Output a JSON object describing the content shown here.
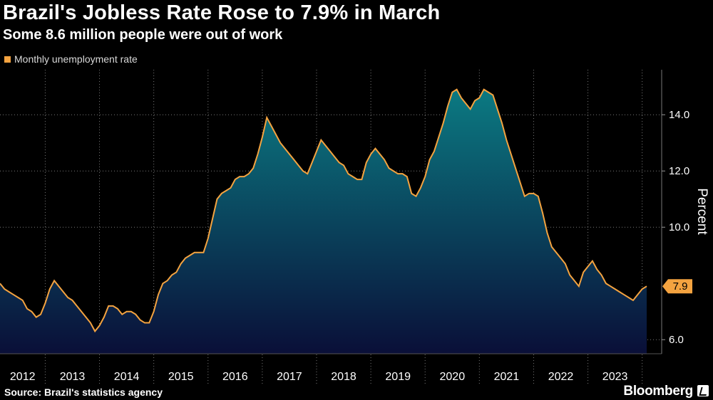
{
  "header": {
    "title": "Brazil's Jobless Rate Rose to 7.9% in March",
    "subtitle": "Some 8.6 million people were out of work"
  },
  "footer": {
    "source": "Source: Brazil's statistics agency",
    "brand": "Bloomberg"
  },
  "colors": {
    "line": "#f4a340",
    "area_top": "#0b7a82",
    "area_bottom": "#0a0f38",
    "grid": "#777777"
  },
  "chart_data": {
    "type": "area",
    "title": "Brazil's Jobless Rate Rose to 7.9% in March",
    "subtitle": "Some 8.6 million people were out of work",
    "ylabel": "Percent",
    "ylim": [
      5.5,
      15.6
    ],
    "yticks": [
      "6.0",
      "10.0",
      "12.0",
      "14.0"
    ],
    "ytick_values": [
      6,
      10,
      12,
      14
    ],
    "xcategories": [
      "2012",
      "2013",
      "2014",
      "2015",
      "2016",
      "2017",
      "2018",
      "2019",
      "2020",
      "2021",
      "2022",
      "2023"
    ],
    "last_value_label": "7.9",
    "series": [
      {
        "name": "Monthly unemployment rate",
        "start": "2012-03",
        "end": "2024-03",
        "values": [
          8.0,
          7.8,
          7.7,
          7.6,
          7.5,
          7.4,
          7.1,
          7.0,
          6.8,
          6.9,
          7.3,
          7.8,
          8.1,
          7.9,
          7.7,
          7.5,
          7.4,
          7.2,
          7.0,
          6.8,
          6.6,
          6.3,
          6.5,
          6.8,
          7.2,
          7.2,
          7.1,
          6.9,
          7.0,
          7.0,
          6.9,
          6.7,
          6.6,
          6.6,
          7.0,
          7.6,
          8.0,
          8.1,
          8.3,
          8.4,
          8.7,
          8.9,
          9.0,
          9.1,
          9.1,
          9.1,
          9.6,
          10.3,
          11.0,
          11.2,
          11.3,
          11.4,
          11.7,
          11.8,
          11.8,
          11.9,
          12.1,
          12.6,
          13.2,
          13.9,
          13.6,
          13.3,
          13.0,
          12.8,
          12.6,
          12.4,
          12.2,
          12.0,
          11.9,
          12.3,
          12.7,
          13.1,
          12.9,
          12.7,
          12.5,
          12.3,
          12.2,
          11.9,
          11.8,
          11.7,
          11.7,
          12.3,
          12.6,
          12.8,
          12.6,
          12.4,
          12.1,
          12.0,
          11.9,
          11.9,
          11.8,
          11.2,
          11.1,
          11.4,
          11.8,
          12.4,
          12.7,
          13.2,
          13.7,
          14.3,
          14.8,
          14.9,
          14.6,
          14.4,
          14.2,
          14.5,
          14.6,
          14.9,
          14.8,
          14.7,
          14.2,
          13.7,
          13.1,
          12.6,
          12.1,
          11.6,
          11.1,
          11.2,
          11.2,
          11.1,
          10.5,
          9.8,
          9.3,
          9.1,
          8.9,
          8.7,
          8.3,
          8.1,
          7.9,
          8.4,
          8.6,
          8.8,
          8.5,
          8.3,
          8.0,
          7.9,
          7.8,
          7.7,
          7.6,
          7.5,
          7.4,
          7.6,
          7.8,
          7.9
        ]
      }
    ]
  }
}
